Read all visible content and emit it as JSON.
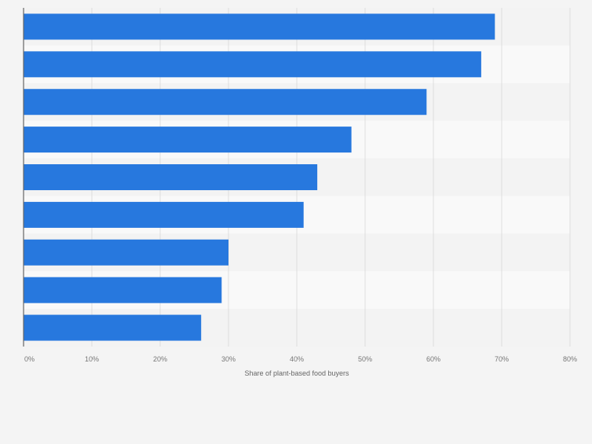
{
  "chart_data": {
    "type": "bar",
    "orientation": "horizontal",
    "title": "",
    "xlabel": "Share of plant-based food buyers",
    "ylabel": "",
    "categories": [
      "",
      "",
      "",
      "",
      "",
      "",
      "",
      "",
      ""
    ],
    "values": [
      69,
      67,
      59,
      48,
      43,
      41,
      30,
      29,
      26
    ],
    "value_unit": "%",
    "xlim": [
      0,
      80
    ],
    "x_ticks": [
      0,
      10,
      20,
      30,
      40,
      50,
      60,
      70,
      80
    ],
    "x_tick_labels": [
      "0%",
      "10%",
      "20%",
      "30%",
      "40%",
      "50%",
      "60%",
      "70%",
      "80%"
    ],
    "grid": true,
    "legend": "none",
    "colors": {
      "bar": "#2778de",
      "band_a": "#f3f3f3",
      "band_b": "#f9f9f9",
      "grid": "#dedede",
      "axis": "#666666",
      "tick_text": "#777777",
      "label_text": "#666666",
      "background": "#f4f4f4"
    }
  }
}
